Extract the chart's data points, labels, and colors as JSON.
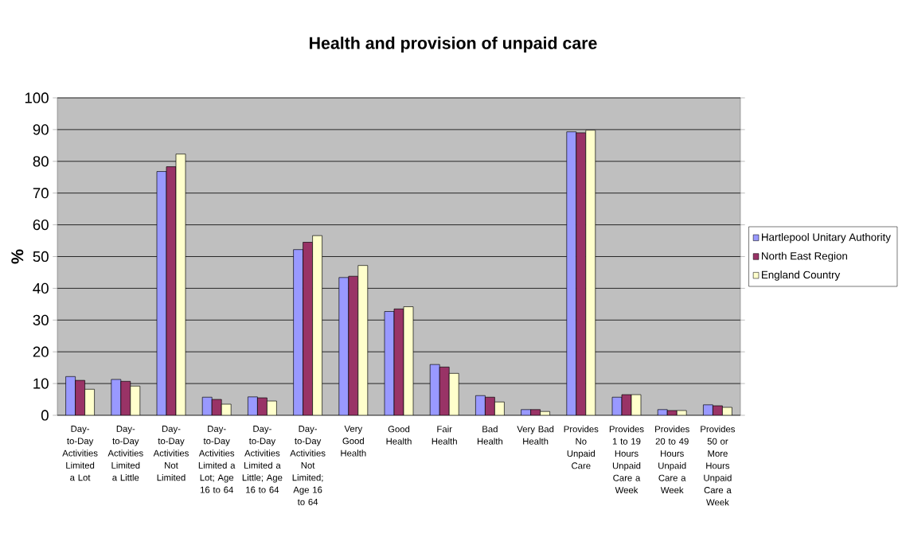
{
  "chart_data": {
    "type": "bar",
    "title": "Health and provision of unpaid care",
    "ylabel": "%",
    "categories": [
      "Day-to-Day Activities Limited a Lot",
      "Day-to-Day Activities Limited a Little",
      "Day-to-Day Activities Not Limited",
      "Day-to-Day Activities Limited a Lot; Age 16 to 64",
      "Day-to-Day Activities Limited a Little; Age 16 to 64",
      "Day-to-Day Activities Not Limited; Age 16 to 64",
      "Very Good Health",
      "Good Health",
      "Fair Health",
      "Bad Health",
      "Very Bad Health",
      "Provides No Unpaid Care",
      "Provides 1 to 19 Hours Unpaid Care a Week",
      "Provides 20 to 49 Hours Unpaid Care a Week",
      "Provides 50 or More Hours Unpaid Care a Week"
    ],
    "series": [
      {
        "name": "Hartlepool Unitary Authority",
        "color": "#9999ff",
        "values": [
          12.2,
          11.3,
          76.8,
          5.7,
          5.8,
          52.2,
          43.4,
          32.7,
          16.0,
          6.2,
          1.8,
          89.3,
          5.7,
          1.8,
          3.3
        ]
      },
      {
        "name": "North East Region",
        "color": "#993366",
        "values": [
          11.0,
          10.7,
          78.3,
          5.0,
          5.5,
          54.5,
          43.8,
          33.5,
          15.2,
          5.7,
          1.8,
          89.0,
          6.5,
          1.5,
          3.0
        ]
      },
      {
        "name": "England Country",
        "color": "#ffffcc",
        "values": [
          8.2,
          9.2,
          82.3,
          3.5,
          4.5,
          56.6,
          47.2,
          34.2,
          13.2,
          4.2,
          1.2,
          89.8,
          6.5,
          1.5,
          2.5
        ]
      }
    ],
    "ylim": [
      0,
      100
    ],
    "yticks": [
      0,
      10,
      20,
      30,
      40,
      50,
      60,
      70,
      80,
      90,
      100
    ],
    "grid": "y",
    "legend": "right"
  }
}
